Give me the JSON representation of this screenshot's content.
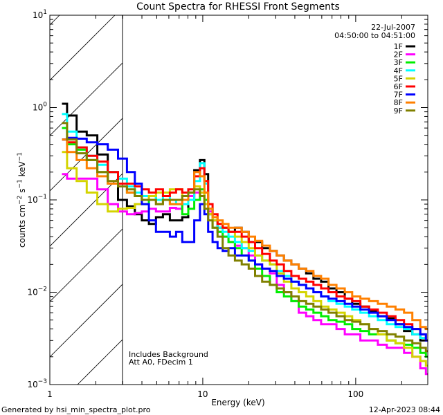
{
  "chart_data": {
    "type": "line",
    "title": "Count Spectra for RHESSI Front Segments",
    "xlabel": "Energy (keV)",
    "ylabel": "counts cm^-2 s^-1 keV^-1",
    "ylabel_parts": {
      "base": "counts cm",
      "e1": "−2",
      "mid": " s",
      "e2": "−1",
      "end": " keV",
      "e3": "−1"
    },
    "xscale": "log",
    "yscale": "log",
    "xlim": [
      1,
      296
    ],
    "ylim": [
      0.001,
      10
    ],
    "x_ticks": [
      {
        "value": 1,
        "label": "1"
      },
      {
        "value": 10,
        "label": "10"
      },
      {
        "value": 100,
        "label": "100"
      }
    ],
    "y_ticks": [
      {
        "value": 10,
        "base": "10",
        "exp": "1"
      },
      {
        "value": 1,
        "base": "10",
        "exp": "0"
      },
      {
        "value": 0.1,
        "base": "10",
        "exp": "−1"
      },
      {
        "value": 0.01,
        "base": "10",
        "exp": "−2"
      },
      {
        "value": 0.001,
        "base": "10",
        "exp": "−3"
      }
    ],
    "shaded_region": {
      "x_range": [
        1,
        3
      ],
      "style": "hatched"
    },
    "legend_header": [
      "22-Jul-2007",
      "04:50:00 to 04:51:00"
    ],
    "legend_position": "top-right",
    "annotations": [
      "Includes Background",
      "Att A0, FDecim 1"
    ],
    "grid": false,
    "x": [
      1.2,
      1.4,
      1.6,
      1.9,
      2.2,
      2.6,
      3.0,
      3.4,
      3.8,
      4.2,
      4.7,
      5.2,
      5.8,
      6.4,
      7.0,
      7.7,
      8.4,
      9.2,
      10.0,
      10.5,
      11.2,
      12,
      13,
      14,
      15.5,
      17,
      19,
      21,
      23,
      26,
      29,
      32,
      36,
      40,
      45,
      50,
      56,
      63,
      70,
      80,
      90,
      100,
      115,
      130,
      150,
      170,
      195,
      220,
      250,
      280,
      296
    ],
    "series": [
      {
        "name": "1F",
        "color": "#000000",
        "values": [
          1.1,
          0.82,
          0.55,
          0.5,
          0.31,
          0.2,
          0.1,
          0.085,
          0.07,
          0.06,
          0.055,
          0.065,
          0.07,
          0.06,
          0.06,
          0.065,
          0.1,
          0.21,
          0.27,
          0.19,
          0.08,
          0.06,
          0.05,
          0.05,
          0.045,
          0.05,
          0.045,
          0.035,
          0.035,
          0.03,
          0.028,
          0.025,
          0.022,
          0.02,
          0.018,
          0.016,
          0.014,
          0.013,
          0.011,
          0.01,
          0.0085,
          0.0075,
          0.007,
          0.0062,
          0.0055,
          0.0052,
          0.0045,
          0.0038,
          0.0035,
          0.003,
          0.003
        ]
      },
      {
        "name": "2F",
        "color": "#ff00ff",
        "values": [
          0.19,
          0.17,
          0.17,
          0.17,
          0.13,
          0.09,
          0.075,
          0.07,
          0.072,
          0.075,
          0.08,
          0.075,
          0.075,
          0.082,
          0.08,
          0.1,
          0.11,
          0.12,
          0.12,
          0.12,
          0.075,
          0.06,
          0.045,
          0.04,
          0.035,
          0.032,
          0.03,
          0.025,
          0.02,
          0.018,
          0.016,
          0.012,
          0.01,
          0.008,
          0.006,
          0.0055,
          0.005,
          0.0045,
          0.0045,
          0.004,
          0.0035,
          0.0035,
          0.003,
          0.003,
          0.0027,
          0.0025,
          0.0025,
          0.0022,
          0.002,
          0.0015,
          0.0013
        ]
      },
      {
        "name": "3F",
        "color": "#00ee00",
        "values": [
          0.6,
          0.4,
          0.35,
          0.27,
          0.2,
          0.15,
          0.14,
          0.12,
          0.11,
          0.09,
          0.11,
          0.1,
          0.1,
          0.09,
          0.09,
          0.07,
          0.08,
          0.1,
          0.13,
          0.1,
          0.07,
          0.05,
          0.045,
          0.04,
          0.035,
          0.03,
          0.025,
          0.022,
          0.018,
          0.015,
          0.012,
          0.01,
          0.009,
          0.008,
          0.007,
          0.0065,
          0.006,
          0.0055,
          0.005,
          0.0048,
          0.0045,
          0.004,
          0.0038,
          0.0035,
          0.0035,
          0.003,
          0.0028,
          0.0027,
          0.0025,
          0.0022,
          0.002
        ]
      },
      {
        "name": "4F",
        "color": "#00ffff",
        "values": [
          0.85,
          0.55,
          0.37,
          0.3,
          0.24,
          0.2,
          0.17,
          0.14,
          0.12,
          0.11,
          0.11,
          0.1,
          0.11,
          0.1,
          0.09,
          0.09,
          0.1,
          0.16,
          0.25,
          0.15,
          0.08,
          0.06,
          0.05,
          0.045,
          0.04,
          0.035,
          0.03,
          0.028,
          0.025,
          0.022,
          0.02,
          0.017,
          0.015,
          0.013,
          0.012,
          0.011,
          0.01,
          0.009,
          0.008,
          0.0075,
          0.007,
          0.0065,
          0.006,
          0.0055,
          0.005,
          0.0045,
          0.0042,
          0.004,
          0.0035,
          0.0032,
          0.003
        ]
      },
      {
        "name": "5F",
        "color": "#d4d400",
        "values": [
          0.33,
          0.22,
          0.16,
          0.12,
          0.09,
          0.075,
          0.08,
          0.082,
          0.09,
          0.1,
          0.11,
          0.12,
          0.12,
          0.13,
          0.13,
          0.11,
          0.12,
          0.14,
          0.12,
          0.09,
          0.07,
          0.06,
          0.055,
          0.05,
          0.045,
          0.04,
          0.035,
          0.03,
          0.025,
          0.022,
          0.02,
          0.016,
          0.013,
          0.011,
          0.01,
          0.009,
          0.008,
          0.007,
          0.0065,
          0.006,
          0.0055,
          0.005,
          0.0045,
          0.004,
          0.0035,
          0.003,
          0.0028,
          0.0025,
          0.002,
          0.0018,
          0.0016
        ]
      },
      {
        "name": "6F",
        "color": "#ff0000",
        "values": [
          0.45,
          0.42,
          0.37,
          0.3,
          0.26,
          0.2,
          0.15,
          0.15,
          0.14,
          0.13,
          0.12,
          0.13,
          0.11,
          0.12,
          0.13,
          0.12,
          0.13,
          0.18,
          0.22,
          0.16,
          0.09,
          0.07,
          0.055,
          0.05,
          0.045,
          0.045,
          0.04,
          0.035,
          0.03,
          0.026,
          0.022,
          0.02,
          0.017,
          0.015,
          0.014,
          0.013,
          0.012,
          0.011,
          0.01,
          0.009,
          0.0085,
          0.008,
          0.007,
          0.0065,
          0.006,
          0.0055,
          0.005,
          0.0045,
          0.004,
          0.0035,
          0.003
        ]
      },
      {
        "name": "7F",
        "color": "#0000ff",
        "values": [
          0.45,
          0.47,
          0.46,
          0.42,
          0.4,
          0.35,
          0.28,
          0.2,
          0.15,
          0.09,
          0.06,
          0.045,
          0.045,
          0.04,
          0.045,
          0.035,
          0.035,
          0.06,
          0.09,
          0.07,
          0.045,
          0.035,
          0.03,
          0.028,
          0.03,
          0.025,
          0.025,
          0.022,
          0.02,
          0.018,
          0.017,
          0.015,
          0.014,
          0.013,
          0.012,
          0.011,
          0.01,
          0.009,
          0.0085,
          0.008,
          0.0075,
          0.007,
          0.0065,
          0.006,
          0.0055,
          0.005,
          0.0045,
          0.0042,
          0.004,
          0.0035,
          0.003
        ]
      },
      {
        "name": "8F",
        "color": "#ff8000",
        "values": [
          0.45,
          0.33,
          0.27,
          0.22,
          0.18,
          0.15,
          0.14,
          0.12,
          0.11,
          0.1,
          0.1,
          0.09,
          0.1,
          0.09,
          0.09,
          0.1,
          0.12,
          0.2,
          0.18,
          0.12,
          0.08,
          0.065,
          0.06,
          0.055,
          0.05,
          0.05,
          0.045,
          0.04,
          0.036,
          0.032,
          0.028,
          0.025,
          0.022,
          0.02,
          0.018,
          0.017,
          0.015,
          0.014,
          0.012,
          0.011,
          0.01,
          0.009,
          0.0085,
          0.008,
          0.0075,
          0.007,
          0.0065,
          0.006,
          0.005,
          0.0042,
          0.004
        ]
      },
      {
        "name": "9F",
        "color": "#808000",
        "values": [
          0.68,
          0.45,
          0.32,
          0.27,
          0.2,
          0.16,
          0.14,
          0.13,
          0.11,
          0.1,
          0.1,
          0.09,
          0.1,
          0.1,
          0.1,
          0.11,
          0.12,
          0.13,
          0.11,
          0.08,
          0.06,
          0.05,
          0.04,
          0.03,
          0.025,
          0.022,
          0.02,
          0.018,
          0.015,
          0.013,
          0.012,
          0.011,
          0.01,
          0.009,
          0.008,
          0.0075,
          0.007,
          0.0065,
          0.006,
          0.0055,
          0.005,
          0.0048,
          0.0045,
          0.004,
          0.0038,
          0.0035,
          0.0033,
          0.003,
          0.0028,
          0.0025,
          0.0023
        ]
      }
    ]
  },
  "footer": {
    "generated_by": "Generated by hsi_min_spectra_plot.pro",
    "timestamp": "12-Apr-2023 08:44"
  }
}
